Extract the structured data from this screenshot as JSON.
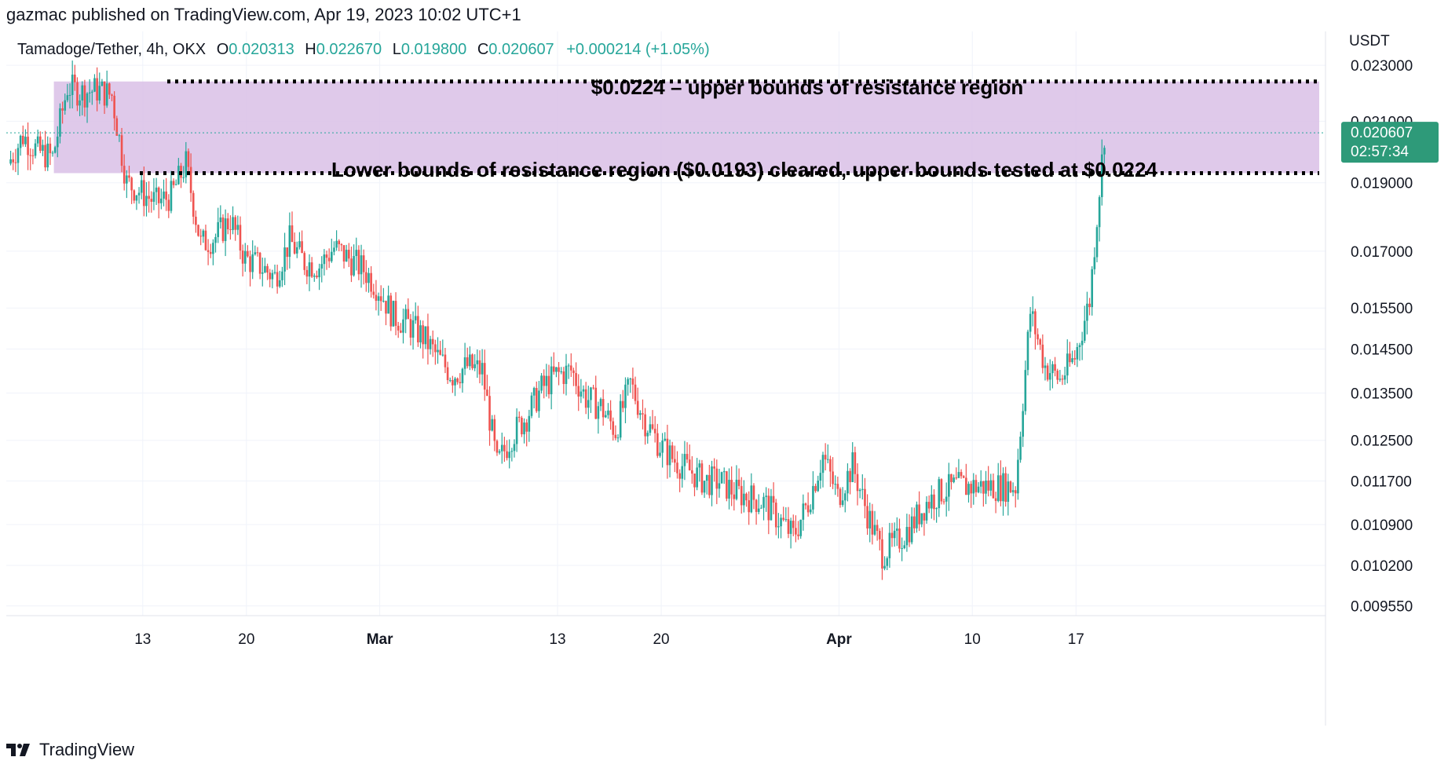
{
  "header": {
    "text": "gazmac published on TradingView.com, Apr 19, 2023 10:02 UTC+1"
  },
  "legend": {
    "symbol": "Tamadoge/Tether, 4h, OKX",
    "open_label": "O",
    "open": "0.020313",
    "high_label": "H",
    "high": "0.022670",
    "low_label": "L",
    "low": "0.019800",
    "close_label": "C",
    "close": "0.020607",
    "change": "+0.000214 (+1.05%)"
  },
  "price_tag": {
    "price": "0.020607",
    "countdown": "02:57:34"
  },
  "footer": {
    "brand": "TradingView",
    "logo_icon": "tradingview-logo-icon"
  },
  "colors": {
    "up": "#26a69a",
    "down": "#ef5350",
    "zone": "#d9bfe6",
    "tag": "#2e9a79"
  },
  "chart_data": {
    "type": "candlestick",
    "axis_unit": "USDT",
    "y_scale": "log",
    "ylim": [
      0.0094,
      0.0243
    ],
    "y_ticks": [
      "0.023000",
      "0.021000",
      "0.019000",
      "0.017000",
      "0.015500",
      "0.014500",
      "0.013500",
      "0.012500",
      "0.011700",
      "0.010900",
      "0.010200",
      "0.009550"
    ],
    "x_ticks": [
      {
        "label": "13",
        "date": "2023-02-13"
      },
      {
        "label": "20",
        "date": "2023-02-20"
      },
      {
        "label": "Mar",
        "date": "2023-03-01"
      },
      {
        "label": "13",
        "date": "2023-03-13"
      },
      {
        "label": "20",
        "date": "2023-03-20"
      },
      {
        "label": "Apr",
        "date": "2023-04-01"
      },
      {
        "label": "10",
        "date": "2023-04-10"
      },
      {
        "label": "17",
        "date": "2023-04-17"
      }
    ],
    "resistance_zone": {
      "lower": 0.0193,
      "upper": 0.0224
    },
    "annotations": [
      {
        "text": "$0.0224 – upper bounds of resistance region",
        "price": 0.0224
      },
      {
        "text": "Lower bounds of resistance region ($0.0193) cleared, upper bounds tested at $0.0224",
        "price": 0.0193
      }
    ],
    "path": [
      {
        "date": "2023-02-04",
        "close": 0.0196
      },
      {
        "date": "2023-02-05",
        "close": 0.0205
      },
      {
        "date": "2023-02-06",
        "close": 0.02
      },
      {
        "date": "2023-02-07",
        "close": 0.0198
      },
      {
        "date": "2023-02-08",
        "close": 0.0222
      },
      {
        "date": "2023-02-09",
        "close": 0.022
      },
      {
        "date": "2023-02-10",
        "close": 0.0221
      },
      {
        "date": "2023-02-11",
        "close": 0.0219
      },
      {
        "date": "2023-02-12",
        "close": 0.019
      },
      {
        "date": "2023-02-13",
        "close": 0.0187
      },
      {
        "date": "2023-02-14",
        "close": 0.0184
      },
      {
        "date": "2023-02-15",
        "close": 0.0186
      },
      {
        "date": "2023-02-16",
        "close": 0.0196
      },
      {
        "date": "2023-02-17",
        "close": 0.0172
      },
      {
        "date": "2023-02-18",
        "close": 0.0174
      },
      {
        "date": "2023-02-19",
        "close": 0.0179
      },
      {
        "date": "2023-02-20",
        "close": 0.0168
      },
      {
        "date": "2023-02-21",
        "close": 0.0166
      },
      {
        "date": "2023-02-22",
        "close": 0.0163
      },
      {
        "date": "2023-02-23",
        "close": 0.0173
      },
      {
        "date": "2023-02-24",
        "close": 0.0167
      },
      {
        "date": "2023-02-25",
        "close": 0.0166
      },
      {
        "date": "2023-02-26",
        "close": 0.0171
      },
      {
        "date": "2023-02-27",
        "close": 0.0168
      },
      {
        "date": "2023-02-28",
        "close": 0.0165
      },
      {
        "date": "2023-03-01",
        "close": 0.016
      },
      {
        "date": "2023-03-02",
        "close": 0.0153
      },
      {
        "date": "2023-03-03",
        "close": 0.0151
      },
      {
        "date": "2023-03-04",
        "close": 0.0148
      },
      {
        "date": "2023-03-05",
        "close": 0.0143
      },
      {
        "date": "2023-03-06",
        "close": 0.0139
      },
      {
        "date": "2023-03-07",
        "close": 0.0141
      },
      {
        "date": "2023-03-08",
        "close": 0.014
      },
      {
        "date": "2023-03-09",
        "close": 0.012
      },
      {
        "date": "2023-03-10",
        "close": 0.0126
      },
      {
        "date": "2023-03-11",
        "close": 0.013
      },
      {
        "date": "2023-03-12",
        "close": 0.0136
      },
      {
        "date": "2023-03-13",
        "close": 0.0139
      },
      {
        "date": "2023-03-14",
        "close": 0.014
      },
      {
        "date": "2023-03-15",
        "close": 0.0134
      },
      {
        "date": "2023-03-16",
        "close": 0.0132
      },
      {
        "date": "2023-03-17",
        "close": 0.0127
      },
      {
        "date": "2023-03-18",
        "close": 0.0137
      },
      {
        "date": "2023-03-19",
        "close": 0.0129
      },
      {
        "date": "2023-03-20",
        "close": 0.0124
      },
      {
        "date": "2023-03-21",
        "close": 0.0121
      },
      {
        "date": "2023-03-22",
        "close": 0.0119
      },
      {
        "date": "2023-03-23",
        "close": 0.0117
      },
      {
        "date": "2023-03-24",
        "close": 0.0117
      },
      {
        "date": "2023-03-25",
        "close": 0.0115
      },
      {
        "date": "2023-03-26",
        "close": 0.0114
      },
      {
        "date": "2023-03-27",
        "close": 0.0113
      },
      {
        "date": "2023-03-28",
        "close": 0.011
      },
      {
        "date": "2023-03-29",
        "close": 0.0107
      },
      {
        "date": "2023-03-30",
        "close": 0.0113
      },
      {
        "date": "2023-03-31",
        "close": 0.0122
      },
      {
        "date": "2023-04-01",
        "close": 0.0114
      },
      {
        "date": "2023-04-02",
        "close": 0.012
      },
      {
        "date": "2023-04-03",
        "close": 0.0111
      },
      {
        "date": "2023-04-04",
        "close": 0.0104
      },
      {
        "date": "2023-04-05",
        "close": 0.0106
      },
      {
        "date": "2023-04-06",
        "close": 0.0109
      },
      {
        "date": "2023-04-07",
        "close": 0.0113
      },
      {
        "date": "2023-04-08",
        "close": 0.0115
      },
      {
        "date": "2023-04-09",
        "close": 0.0116
      },
      {
        "date": "2023-04-10",
        "close": 0.0116
      },
      {
        "date": "2023-04-11",
        "close": 0.0116
      },
      {
        "date": "2023-04-12",
        "close": 0.0116
      },
      {
        "date": "2023-04-13",
        "close": 0.0116
      },
      {
        "date": "2023-04-14",
        "close": 0.0154
      },
      {
        "date": "2023-04-15",
        "close": 0.0141
      },
      {
        "date": "2023-04-16",
        "close": 0.0138
      },
      {
        "date": "2023-04-17",
        "close": 0.0143
      },
      {
        "date": "2023-04-18",
        "close": 0.0157
      },
      {
        "date": "2023-04-19",
        "close": 0.0206
      }
    ]
  }
}
